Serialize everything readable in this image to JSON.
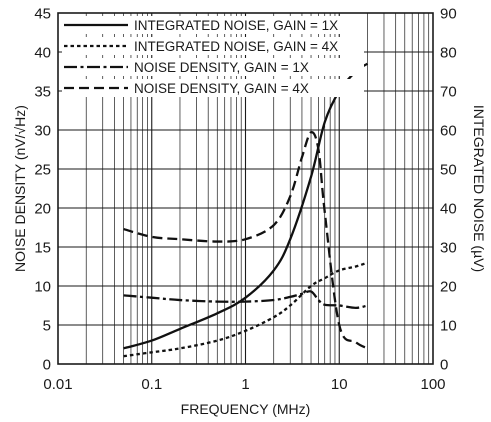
{
  "chart_data": {
    "type": "line",
    "title": "",
    "xlabel": "FREQUENCY (MHz)",
    "ylabel_left": "NOISE DENSITY (nV/√Hz)",
    "ylabel_right": "INTEGRATED NOISE (µV)",
    "x_scale": "log",
    "xlim": [
      0.01,
      100
    ],
    "ylim_left": [
      0,
      45
    ],
    "ylim_right": [
      0,
      90
    ],
    "grid": true,
    "legend_position": "top-left",
    "x_ticks": [
      "0.01",
      "0.1",
      "1",
      "10",
      "100"
    ],
    "y_left_ticks": [
      "0",
      "5",
      "10",
      "15",
      "20",
      "25",
      "30",
      "35",
      "40",
      "45"
    ],
    "y_right_ticks": [
      "0",
      "10",
      "20",
      "30",
      "40",
      "50",
      "60",
      "70",
      "80",
      "90"
    ],
    "series": [
      {
        "name": "INTEGRATED NOISE, GAIN = 1X",
        "axis": "right",
        "style": "solid",
        "x": [
          0.05,
          0.1,
          0.2,
          0.5,
          1,
          2,
          3,
          5,
          7,
          10,
          15,
          20
        ],
        "y": [
          4,
          6,
          9,
          13,
          17,
          24,
          32,
          48,
          62,
          70,
          75,
          77
        ]
      },
      {
        "name": "INTEGRATED NOISE, GAIN = 4X",
        "axis": "right",
        "style": "dotted",
        "x": [
          0.05,
          0.1,
          0.2,
          0.5,
          1,
          2,
          3,
          5,
          7,
          10,
          15,
          20
        ],
        "y": [
          2,
          3,
          4,
          6,
          8.5,
          12,
          15,
          20,
          22,
          24,
          25,
          26
        ]
      },
      {
        "name": "NOISE DENSITY, GAIN = 1X",
        "axis": "left",
        "style": "dash-dot",
        "x": [
          0.05,
          0.1,
          0.2,
          0.5,
          1,
          2,
          3,
          4,
          5,
          6,
          7,
          10,
          15,
          20
        ],
        "y": [
          8.8,
          8.5,
          8.2,
          8.0,
          8.0,
          8.2,
          8.6,
          9.0,
          9.3,
          8.2,
          7.6,
          7.5,
          7.2,
          7.5
        ]
      },
      {
        "name": "NOISE DENSITY, GAIN = 4X",
        "axis": "left",
        "style": "dashed",
        "x": [
          0.05,
          0.1,
          0.2,
          0.5,
          1,
          2,
          3,
          4,
          5,
          6,
          7,
          10,
          15,
          20
        ],
        "y": [
          17.3,
          16.3,
          16.0,
          15.7,
          16.0,
          17.8,
          21.5,
          26.5,
          29.7,
          27.5,
          19.5,
          5.0,
          2.8,
          2.0
        ]
      }
    ]
  }
}
